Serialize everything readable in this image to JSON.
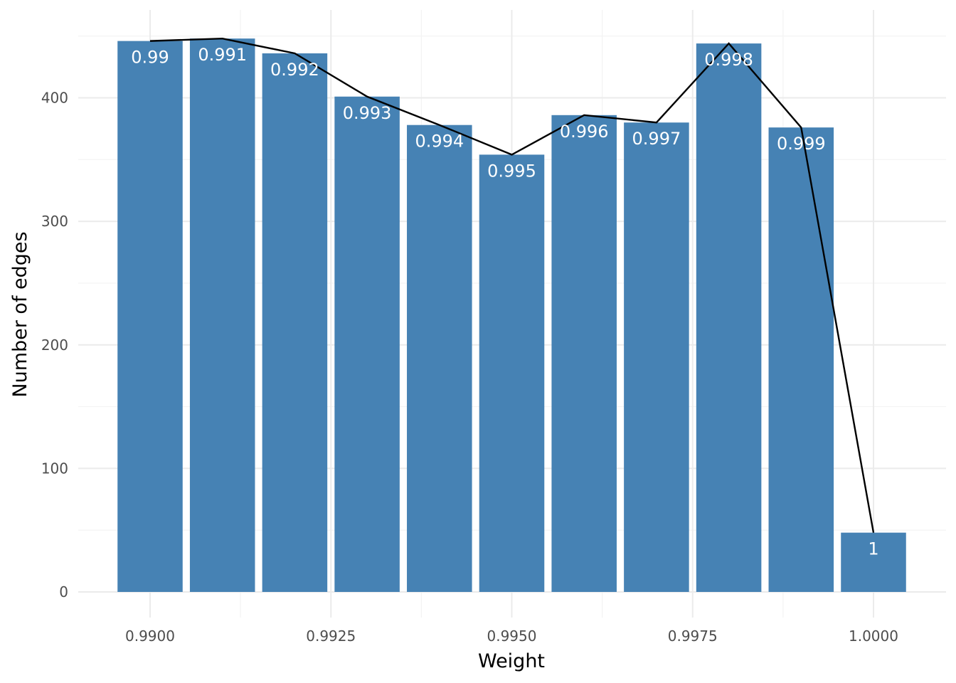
{
  "chart_data": {
    "type": "bar",
    "xlabel": "Weight",
    "ylabel": "Number of edges",
    "x": [
      0.99,
      0.991,
      0.992,
      0.993,
      0.994,
      0.995,
      0.996,
      0.997,
      0.998,
      0.999,
      1.0
    ],
    "values": [
      446,
      448,
      436,
      401,
      378,
      354,
      386,
      380,
      444,
      376,
      48
    ],
    "data_labels": [
      "0.99",
      "0.991",
      "0.992",
      "0.993",
      "0.994",
      "0.995",
      "0.996",
      "0.997",
      "0.998",
      "0.999",
      "1"
    ],
    "line_values": [
      446,
      448,
      436,
      401,
      378,
      354,
      386,
      380,
      444,
      376,
      48
    ],
    "xlim": [
      0.9895,
      1.001
    ],
    "ylim": [
      0,
      450
    ],
    "x_ticks": [
      0.99,
      0.9925,
      0.995,
      0.9975,
      1.0
    ],
    "x_tick_labels": [
      "0.9900",
      "0.9925",
      "0.9950",
      "0.9975",
      "1.0000"
    ],
    "y_ticks": [
      0,
      100,
      200,
      300,
      400
    ],
    "y_tick_labels": [
      "0",
      "100",
      "200",
      "300",
      "400"
    ],
    "grid": true,
    "colors": {
      "bar": "#4682b4",
      "line": "#000000",
      "label": "#ffffff"
    }
  }
}
